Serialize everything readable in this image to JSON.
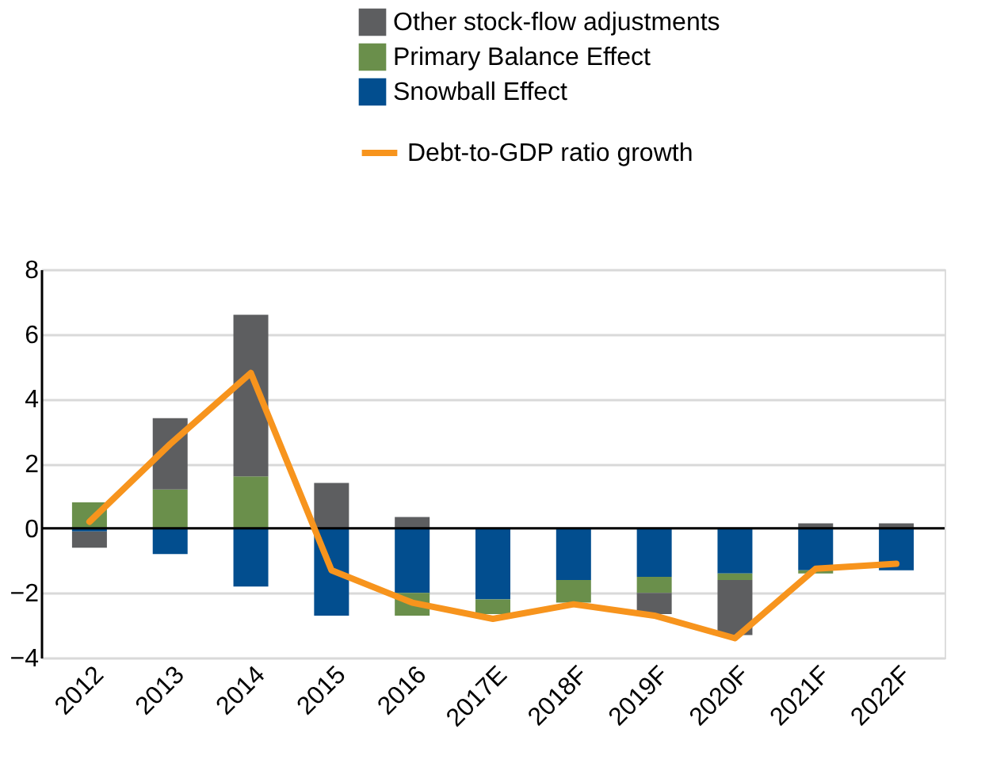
{
  "chart_data": {
    "type": "bar",
    "stacked": true,
    "categories": [
      "2012",
      "2013",
      "2014",
      "2015",
      "2016",
      "2017E",
      "2018F",
      "2019F",
      "2020F",
      "2021F",
      "2022F"
    ],
    "series": [
      {
        "name": "Snowball Effect",
        "color": "#024e8f",
        "values": [
          -0.1,
          -0.8,
          -1.8,
          -2.7,
          -2.0,
          -2.2,
          -1.6,
          -1.5,
          -1.4,
          -1.3,
          -1.3
        ]
      },
      {
        "name": "Primary Balance Effect",
        "color": "#6a8f4b",
        "values": [
          0.8,
          1.2,
          1.6,
          0,
          -0.7,
          -0.45,
          -0.7,
          -0.5,
          -0.2,
          -0.1,
          0
        ]
      },
      {
        "name": "Other stock-flow adjustments",
        "color": "#5d5e60",
        "values": [
          -0.5,
          2.2,
          5.0,
          1.4,
          0.35,
          0,
          0,
          -0.65,
          -1.7,
          0.15,
          0.15
        ]
      },
      {
        "name": "Debt-to-GDP ratio growth",
        "type": "line",
        "color": "#f7941d",
        "values": [
          0.2,
          2.6,
          4.8,
          -1.3,
          -2.3,
          -2.8,
          -2.35,
          -2.7,
          -3.4,
          -1.25,
          -1.1
        ]
      }
    ],
    "ylim": [
      -4,
      8
    ],
    "yticks": [
      -4,
      -2,
      0,
      2,
      4,
      6,
      8
    ],
    "grid": "y",
    "legend": "top",
    "ref_lines": [
      {
        "axis": "y",
        "value": 0,
        "color": "#000000"
      }
    ]
  }
}
